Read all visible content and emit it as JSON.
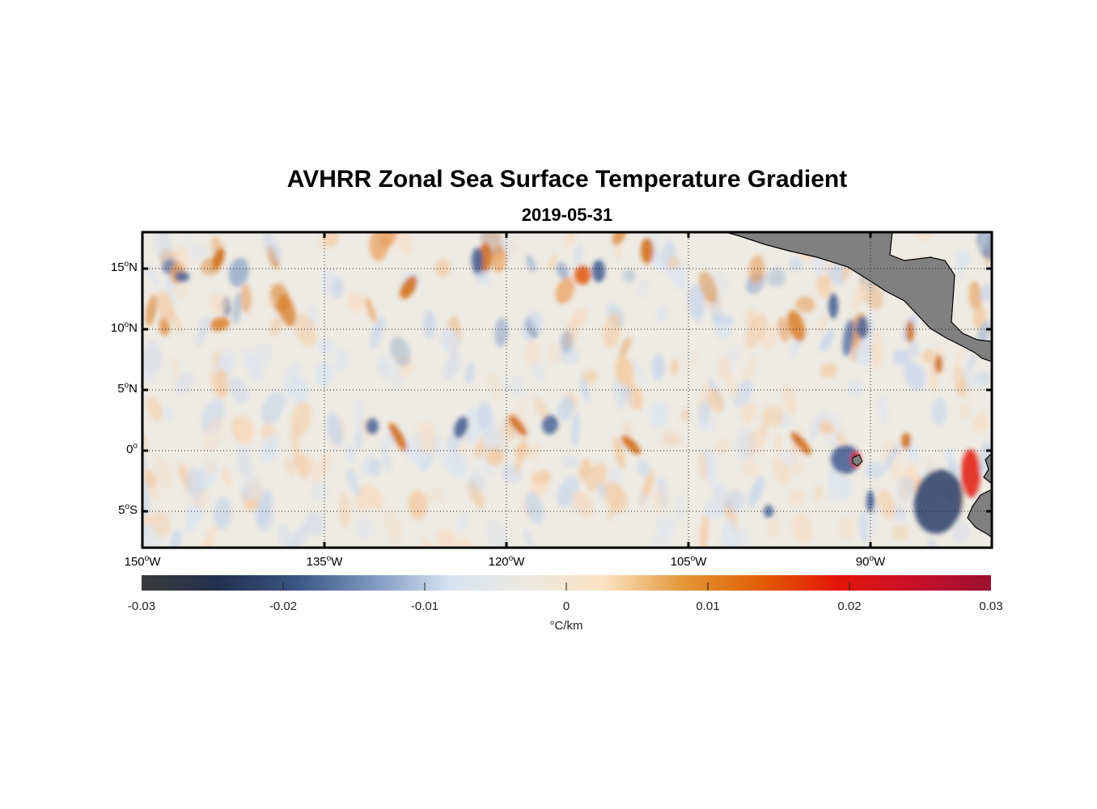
{
  "title": "AVHRR Zonal Sea Surface Temperature Gradient",
  "subtitle": "2019-05-31",
  "map": {
    "lon_range": [
      -150,
      -80
    ],
    "lat_range": [
      -8,
      18
    ],
    "lat_ticks": [
      {
        "value": 15,
        "num": "15",
        "hemi": "N"
      },
      {
        "value": 10,
        "num": "10",
        "hemi": "N"
      },
      {
        "value": 5,
        "num": "5",
        "hemi": "N"
      },
      {
        "value": 0,
        "num": "0",
        "hemi": ""
      },
      {
        "value": -5,
        "num": "5",
        "hemi": "S"
      }
    ],
    "lon_ticks": [
      {
        "value": -150,
        "num": "150",
        "hemi": "W"
      },
      {
        "value": -135,
        "num": "135",
        "hemi": "W"
      },
      {
        "value": -120,
        "num": "120",
        "hemi": "W"
      },
      {
        "value": -105,
        "num": "105",
        "hemi": "W"
      },
      {
        "value": -90,
        "num": "90",
        "hemi": "W"
      }
    ],
    "degree_symbol": "o",
    "land_color": "#808080",
    "grid": "dotted"
  },
  "colorbar": {
    "range": [
      -0.03,
      0.03
    ],
    "ticks": [
      "-0.03",
      "-0.02",
      "-0.01",
      "0",
      "0.01",
      "0.02",
      "0.03"
    ],
    "unit": "°C/km",
    "colors": [
      "#3a3a3a",
      "#22304f",
      "#3a5585",
      "#7f98c2",
      "#d7e4f2",
      "#ede9e0",
      "#fbe1c1",
      "#e39838",
      "#e25f05",
      "#e31508",
      "#c8102a",
      "#9b1030"
    ]
  }
}
